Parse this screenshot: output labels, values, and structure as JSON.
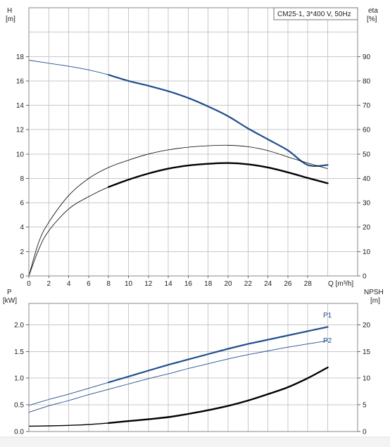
{
  "chart_data": [
    {
      "type": "line",
      "title": "CM25-1, 3*400 V, 50Hz",
      "xlabel": "Q [m³/h]",
      "xlim": [
        0,
        33
      ],
      "xticks": [
        0,
        2,
        4,
        6,
        8,
        10,
        12,
        14,
        16,
        18,
        20,
        22,
        24,
        26,
        28
      ],
      "y_left": {
        "label_line1": "H",
        "label_line2": "[m]",
        "lim": [
          0,
          22
        ],
        "ticks": [
          0,
          2,
          4,
          6,
          8,
          10,
          12,
          14,
          16,
          18
        ]
      },
      "y_right": {
        "label_line1": "eta",
        "label_line2": "[%]",
        "lim": [
          0,
          110
        ],
        "ticks": [
          0,
          10,
          20,
          30,
          40,
          50,
          60,
          70,
          80,
          90
        ]
      },
      "grid": true,
      "series": [
        {
          "axis": "left",
          "color": "#1f4e8c",
          "width_thin": 0.9,
          "width_thick": 2.2,
          "thick_from": 7,
          "x": [
            0,
            2,
            4,
            6,
            8,
            10,
            12,
            14,
            16,
            18,
            20,
            22,
            24,
            26,
            28,
            30
          ],
          "y": [
            17.7,
            17.45,
            17.2,
            16.9,
            16.5,
            16.0,
            15.6,
            15.15,
            14.6,
            13.9,
            13.1,
            12.1,
            11.2,
            10.3,
            9.1,
            9.1
          ]
        },
        {
          "axis": "right",
          "color": "#000000",
          "width_thin": 0.8,
          "width_thick": 0.8,
          "thick_from": 0,
          "x": [
            0,
            1,
            2,
            4,
            6,
            8,
            10,
            12,
            14,
            16,
            18,
            20,
            22,
            24,
            26,
            28,
            30
          ],
          "y": [
            0,
            14,
            22,
            33,
            40,
            44.5,
            47.5,
            50,
            51.7,
            52.8,
            53.4,
            53.6,
            53.0,
            51.4,
            48.8,
            46.3,
            44.0
          ]
        },
        {
          "axis": "right",
          "color": "#000000",
          "width_thin": 0.8,
          "width_thick": 2.4,
          "thick_from": 7,
          "x": [
            0,
            1,
            2,
            4,
            6,
            8,
            10,
            12,
            14,
            16,
            18,
            20,
            22,
            24,
            26,
            28,
            30
          ],
          "y": [
            0,
            11,
            18.5,
            27.5,
            32.5,
            36.5,
            39.5,
            42.0,
            44.0,
            45.3,
            46.0,
            46.3,
            45.8,
            44.5,
            42.5,
            40.2,
            38.0
          ]
        }
      ]
    },
    {
      "type": "line",
      "xlim": [
        0,
        33
      ],
      "xticks": [
        0,
        2,
        4,
        6,
        8,
        10,
        12,
        14,
        16,
        18,
        20,
        22,
        24,
        26,
        28
      ],
      "y_left": {
        "label_line1": "P",
        "label_line2": "[kW]",
        "lim": [
          0,
          2.4
        ],
        "ticks": [
          "0.0",
          "0.5",
          "1.0",
          "1.5",
          "2.0"
        ]
      },
      "y_right": {
        "label_line1": "NPSH",
        "label_line2": "[m]",
        "lim": [
          0,
          24
        ],
        "ticks": [
          0,
          5,
          10,
          15,
          20
        ]
      },
      "grid": true,
      "series": [
        {
          "name": "P1",
          "axis": "left",
          "color": "#1f4e8c",
          "width_thin": 0.9,
          "width_thick": 2.2,
          "thick_from": 7,
          "x": [
            0,
            2,
            4,
            6,
            8,
            10,
            12,
            14,
            16,
            18,
            20,
            22,
            24,
            26,
            28,
            30
          ],
          "y": [
            0.49,
            0.6,
            0.7,
            0.81,
            0.92,
            1.03,
            1.14,
            1.25,
            1.35,
            1.45,
            1.55,
            1.64,
            1.72,
            1.8,
            1.88,
            1.96
          ]
        },
        {
          "name": "P2",
          "axis": "left",
          "color": "#1f4e8c",
          "width_thin": 0.9,
          "width_thick": 0.9,
          "thick_from": 0,
          "x": [
            0,
            2,
            4,
            6,
            8,
            10,
            12,
            14,
            16,
            18,
            20,
            22,
            24,
            26,
            28,
            30
          ],
          "y": [
            0.36,
            0.48,
            0.58,
            0.69,
            0.79,
            0.89,
            0.99,
            1.08,
            1.18,
            1.27,
            1.36,
            1.44,
            1.51,
            1.58,
            1.64,
            1.7
          ]
        },
        {
          "axis": "right",
          "color": "#000000",
          "width_thin": 1.4,
          "width_thick": 2.4,
          "thick_from": 7,
          "x": [
            0,
            2,
            4,
            6,
            8,
            10,
            12,
            14,
            16,
            18,
            20,
            22,
            24,
            26,
            28,
            30
          ],
          "y": [
            1.0,
            1.05,
            1.15,
            1.3,
            1.6,
            1.95,
            2.3,
            2.7,
            3.3,
            4.0,
            4.8,
            5.8,
            7.0,
            8.3,
            10.0,
            12.0
          ]
        }
      ]
    }
  ]
}
